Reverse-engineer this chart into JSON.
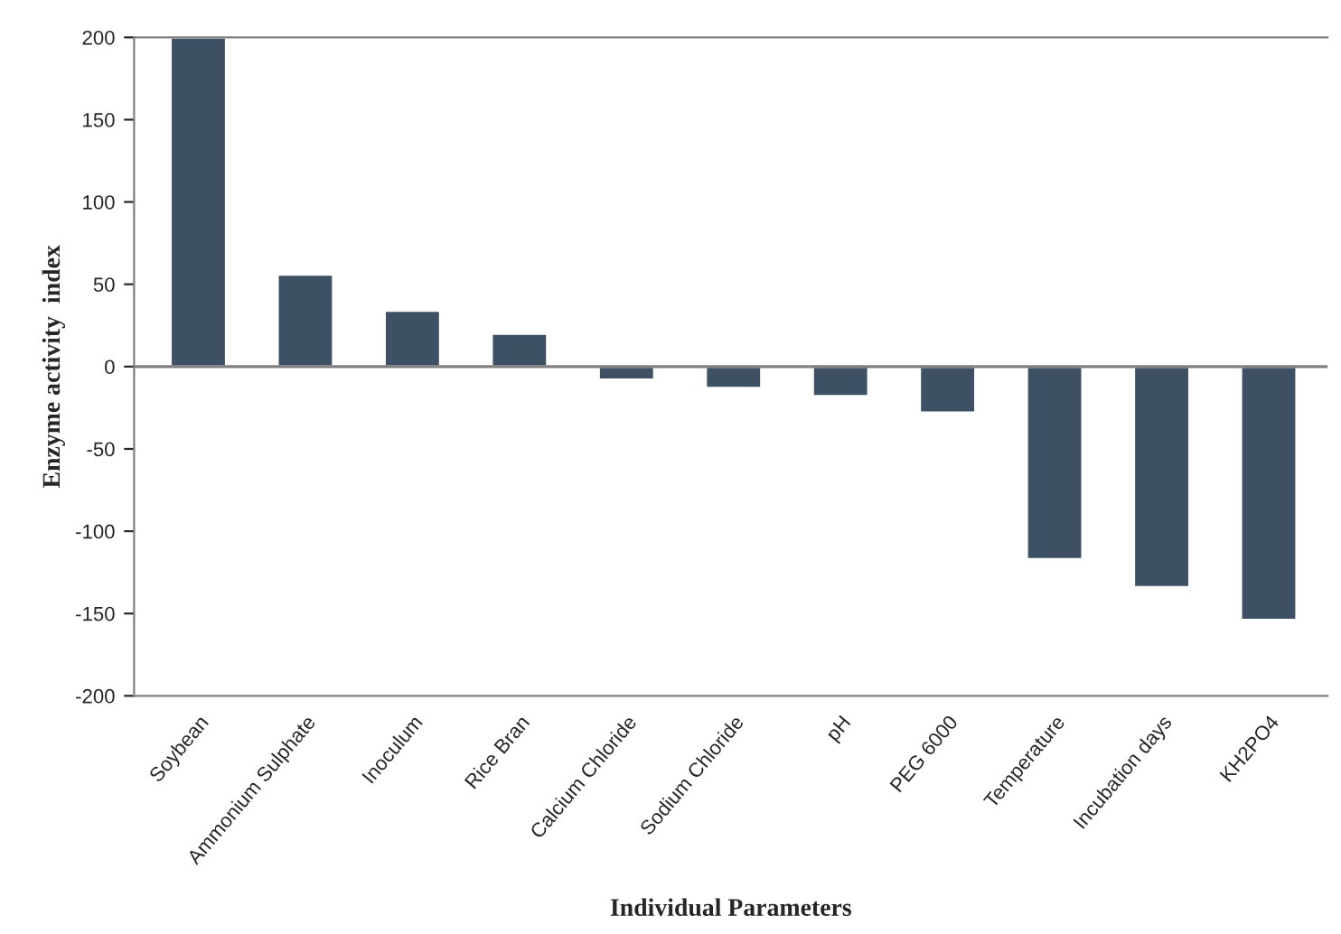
{
  "chart_data": {
    "type": "bar",
    "xlabel": "Individual Parameters",
    "ylabel": "Enzyme activity  index",
    "categories": [
      "Soybean",
      "Ammonium Sulphate",
      "Inoculum",
      "Rice Bran",
      "Calcium Chloride",
      "Sodium Chloride",
      "pH",
      "PEG 6000",
      "Temperature",
      "Incubation days",
      "KH2PO4"
    ],
    "values": [
      200,
      56,
      34,
      20,
      -8,
      -13,
      -18,
      -28,
      -117,
      -134,
      -154
    ],
    "color": "#3e5064",
    "ylim": [
      -200,
      200
    ],
    "yticks": [
      -200,
      -150,
      -100,
      -50,
      0,
      50,
      100,
      150,
      200
    ],
    "ref_lines": [
      {
        "axis": "y",
        "value": 0,
        "color": "#808080"
      }
    ],
    "grid": false
  }
}
